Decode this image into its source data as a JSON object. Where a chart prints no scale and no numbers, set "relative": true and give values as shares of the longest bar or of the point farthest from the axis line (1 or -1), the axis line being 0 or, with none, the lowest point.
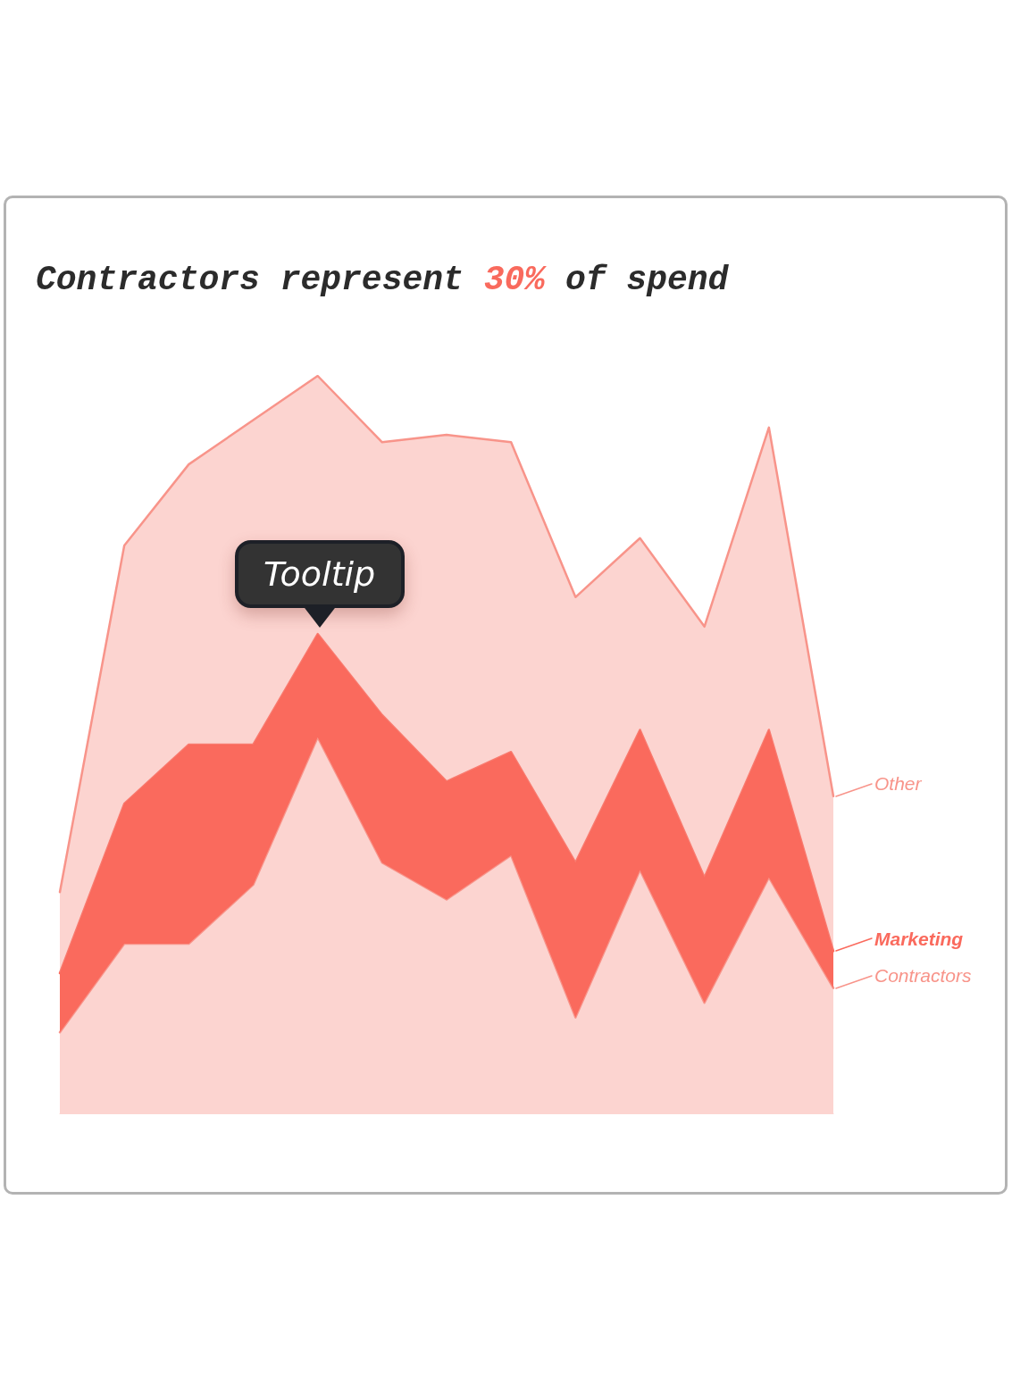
{
  "chart_data": {
    "type": "area",
    "title": "Contractors represent 30% of spend",
    "annotations": [
      "Tooltip"
    ],
    "relative": true,
    "stacked": true,
    "legend": "right",
    "categories": [
      null,
      null,
      null,
      null,
      null,
      null,
      null,
      null,
      null,
      null,
      null,
      null,
      null
    ],
    "series": [
      {
        "name": "Contractors",
        "color": "#f8948a",
        "values": [
          0.11,
          0.23,
          0.23,
          0.31,
          0.51,
          0.34,
          0.29,
          0.35,
          0.13,
          0.33,
          0.15,
          0.32,
          0.17
        ]
      },
      {
        "name": "Marketing",
        "color": "#fa6a5d",
        "values": [
          0.08,
          0.19,
          0.27,
          0.19,
          0.14,
          0.2,
          0.16,
          0.14,
          0.21,
          0.19,
          0.17,
          0.2,
          0.05
        ]
      },
      {
        "name": "Other",
        "color": "#f8948a",
        "values": [
          0.11,
          0.35,
          0.38,
          0.44,
          0.35,
          0.37,
          0.47,
          0.42,
          0.36,
          0.26,
          0.34,
          0.41,
          0.21
        ]
      }
    ]
  }
}
